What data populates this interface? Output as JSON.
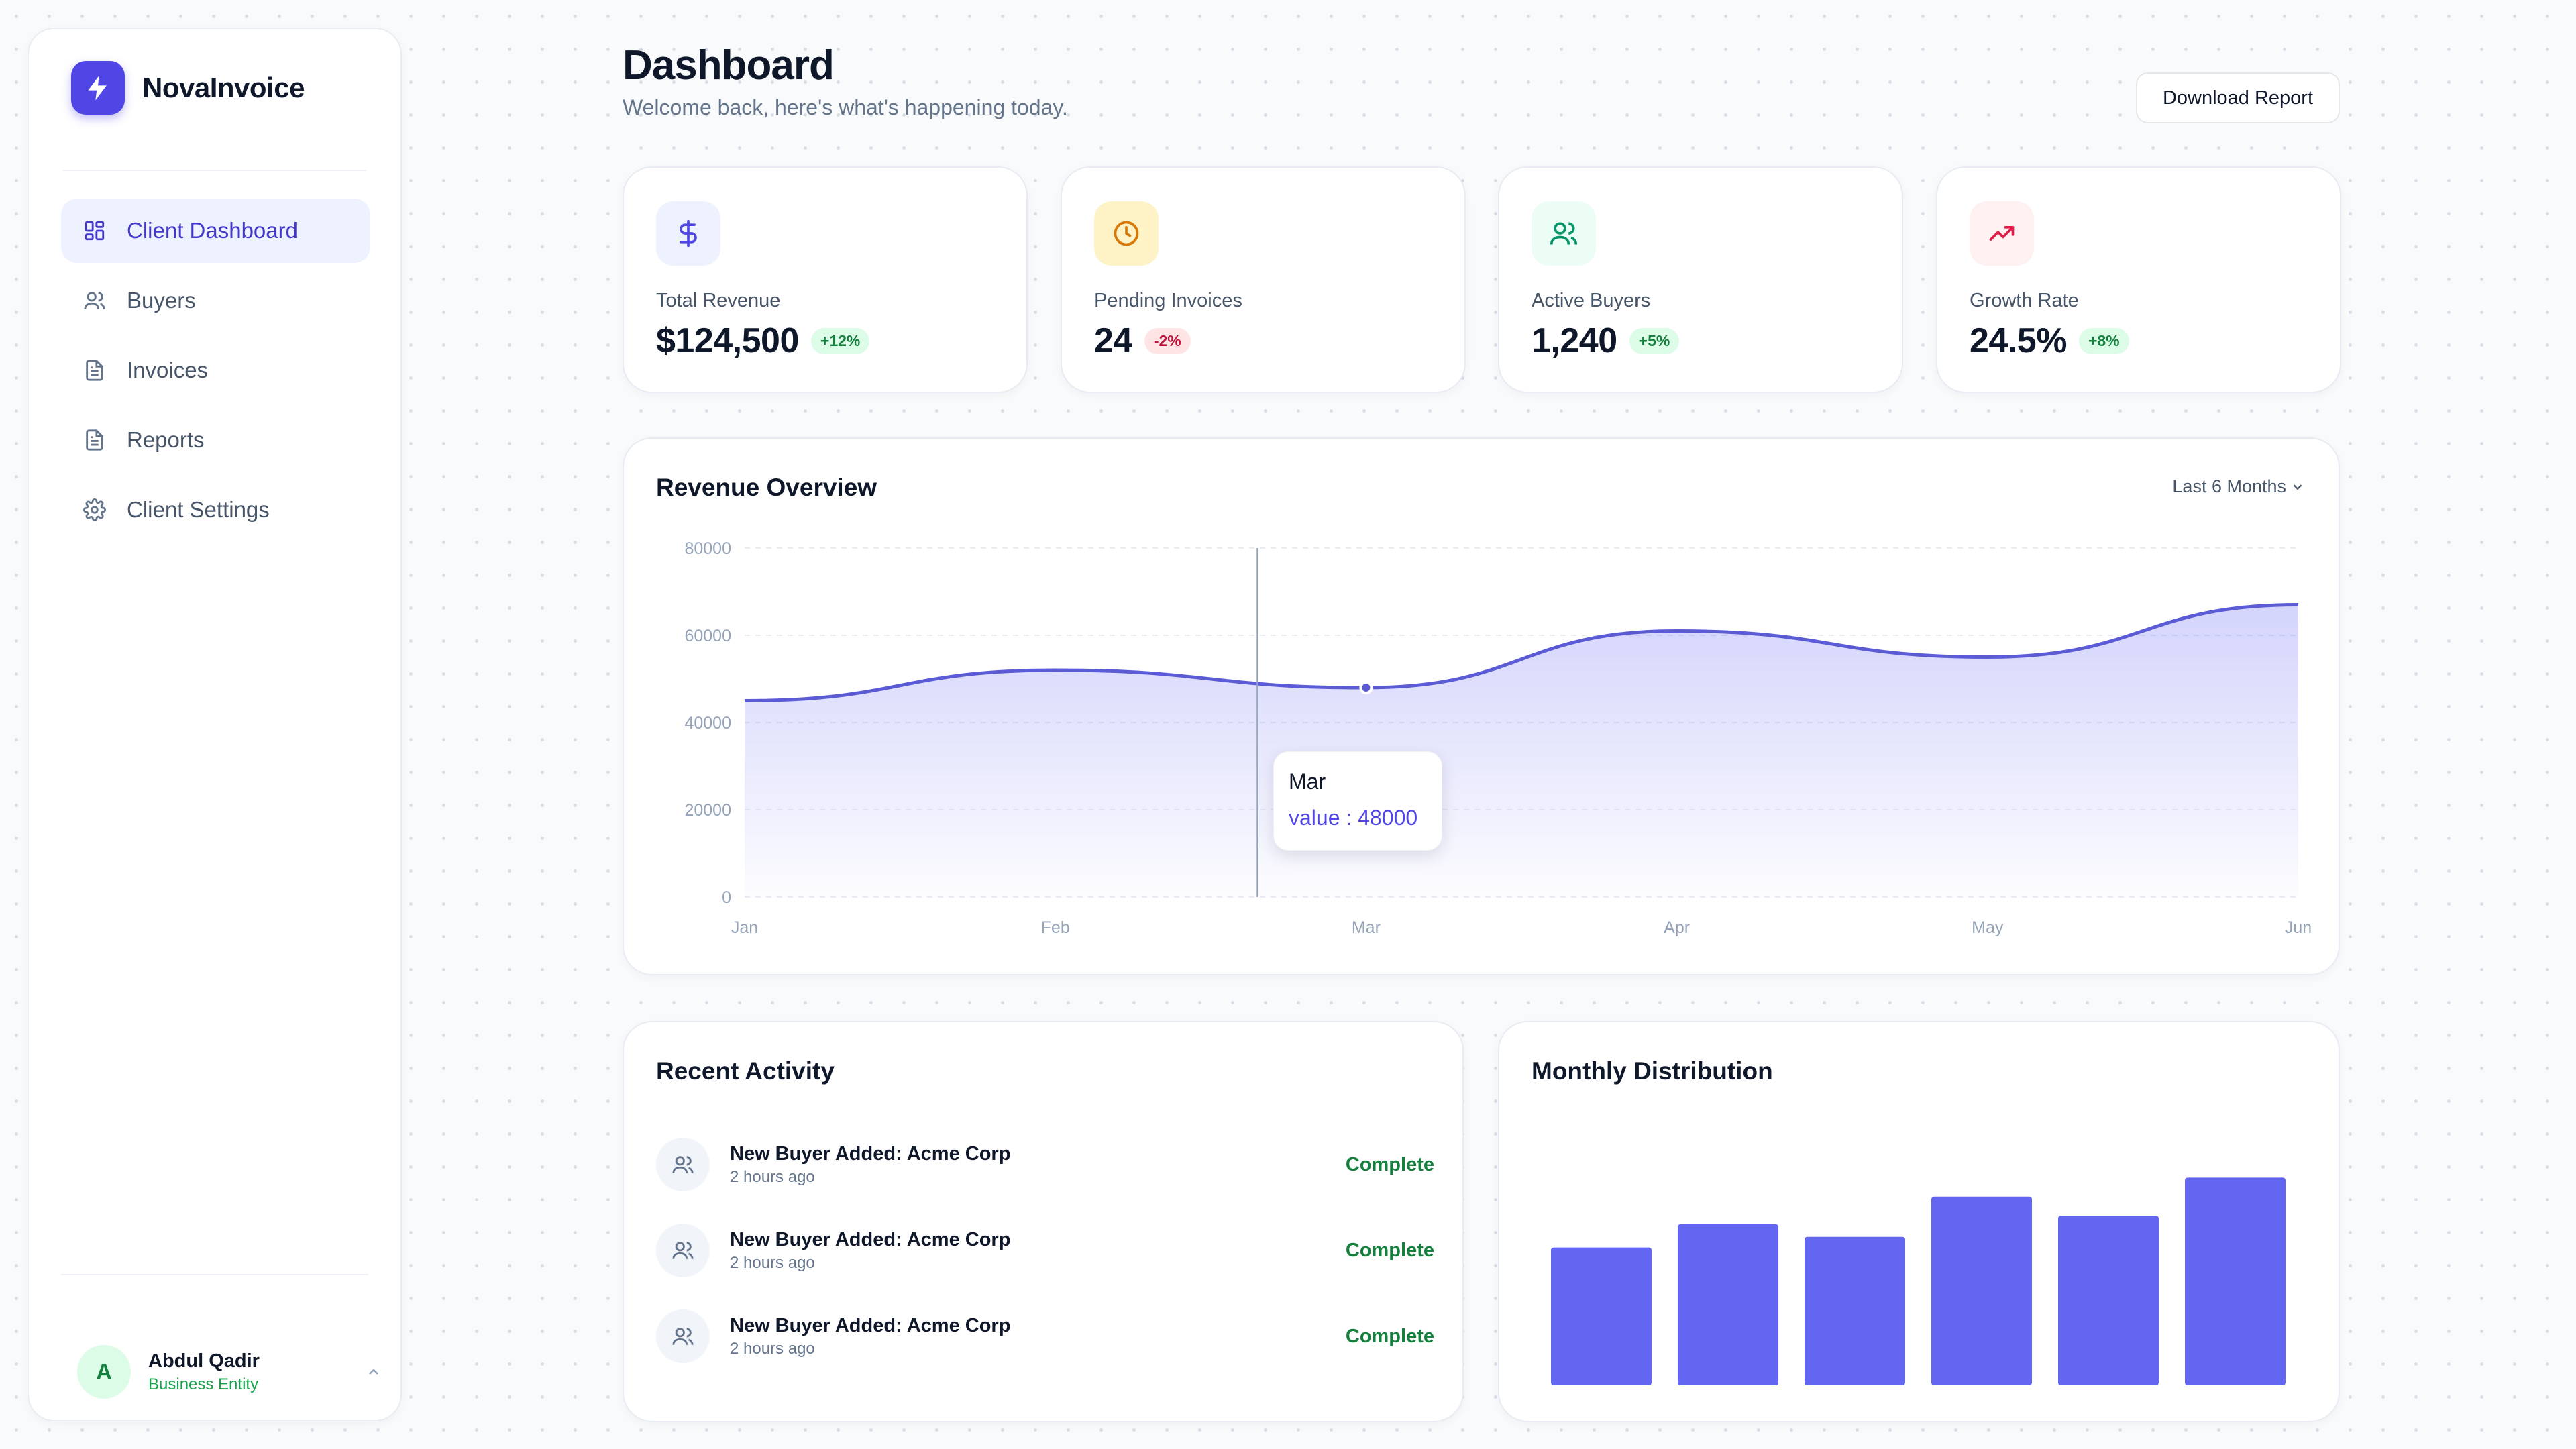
{
  "brand": {
    "name": "NovaInvoice",
    "accent": "#4f46e5"
  },
  "nav": [
    {
      "label": "Client Dashboard",
      "icon": "dashboard-icon",
      "active": true
    },
    {
      "label": "Buyers",
      "icon": "users-icon",
      "active": false
    },
    {
      "label": "Invoices",
      "icon": "document-icon",
      "active": false
    },
    {
      "label": "Reports",
      "icon": "document-icon",
      "active": false
    },
    {
      "label": "Client Settings",
      "icon": "gear-icon",
      "active": false
    }
  ],
  "user": {
    "initial": "A",
    "name": "Abdul Qadir",
    "role": "Business Entity"
  },
  "header": {
    "title": "Dashboard",
    "subtitle": "Welcome back, here's what's happening today.",
    "download_label": "Download Report"
  },
  "stats": [
    {
      "label": "Total Revenue",
      "value": "$124,500",
      "change": "+12%",
      "trend": "up",
      "icon": "dollar-icon",
      "color": "#4f46e5",
      "bg": "#eef2ff"
    },
    {
      "label": "Pending Invoices",
      "value": "24",
      "change": "-2%",
      "trend": "down",
      "icon": "clock-icon",
      "color": "#d97706",
      "bg": "#fef3c7"
    },
    {
      "label": "Active Buyers",
      "value": "1,240",
      "change": "+5%",
      "trend": "up",
      "icon": "users-icon",
      "color": "#059669",
      "bg": "#ecfdf5"
    },
    {
      "label": "Growth Rate",
      "value": "24.5%",
      "change": "+8%",
      "trend": "up",
      "icon": "trending-up-icon",
      "color": "#e11d48",
      "bg": "#fff1f2"
    }
  ],
  "revenue": {
    "title": "Revenue Overview",
    "range_label": "Last 6 Months",
    "tooltip": {
      "label": "Mar",
      "value_text": "value : 48000"
    }
  },
  "activity": {
    "title": "Recent Activity",
    "items": [
      {
        "title": "New Buyer Added: Acme Corp",
        "time": "2 hours ago",
        "status": "Complete"
      },
      {
        "title": "New Buyer Added: Acme Corp",
        "time": "2 hours ago",
        "status": "Complete"
      },
      {
        "title": "New Buyer Added: Acme Corp",
        "time": "2 hours ago",
        "status": "Complete"
      }
    ]
  },
  "distribution": {
    "title": "Monthly Distribution"
  },
  "chart_data": [
    {
      "type": "area",
      "title": "Revenue Overview",
      "categories": [
        "Jan",
        "Feb",
        "Mar",
        "Apr",
        "May",
        "Jun"
      ],
      "values": [
        45000,
        52000,
        48000,
        61000,
        55000,
        67000
      ],
      "yticks": [
        0,
        20000,
        40000,
        60000,
        80000
      ],
      "ylim": [
        0,
        80000
      ],
      "grid": true,
      "color": "#5b5bd6",
      "highlight": "Mar"
    },
    {
      "type": "bar",
      "title": "Monthly Distribution",
      "values": [
        65,
        76,
        70,
        89,
        80,
        98
      ],
      "ylim": [
        0,
        125
      ],
      "color": "#6366f1"
    }
  ]
}
